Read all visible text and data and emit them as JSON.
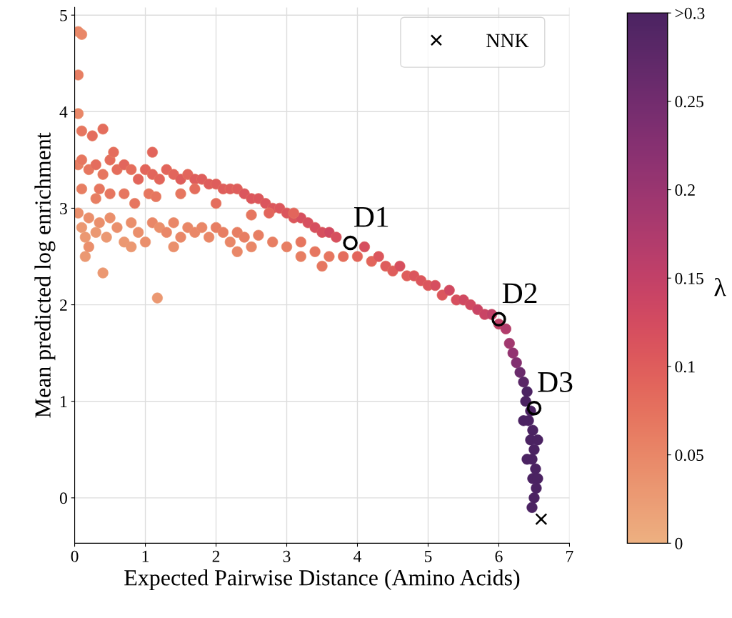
{
  "chart_data": {
    "type": "scatter",
    "xlabel": "Expected Pairwise Distance (Amino Acids)",
    "ylabel": "Mean predicted log enrichment",
    "clabel": "λ",
    "xlim": [
      0,
      7
    ],
    "xticks": [
      0,
      1,
      2,
      3,
      4,
      5,
      6,
      7
    ],
    "ylim": [
      -0.47,
      5.08
    ],
    "yticks": [
      0,
      1,
      2,
      3,
      4,
      5
    ],
    "clim": [
      0,
      0.3
    ],
    "cticks": [
      0,
      0.05,
      0.1,
      0.15,
      0.2,
      0.25,
      {
        "value": 0.3,
        "label": ">0.3"
      }
    ],
    "grid": true,
    "legend": "top right",
    "series": [
      {
        "marker": "circle",
        "colors": [
          "#e88f6e",
          "#e7896a",
          "#e7896a",
          "#e68466",
          "#e7896a",
          "#e68466",
          "#e68466",
          "#e47d63",
          "#e68466",
          "#e47d63",
          "#e47d63",
          "#e47d63",
          "#e47d63",
          "#e47d63",
          "#e47d63",
          "#e27560",
          "#e47d63",
          "#e27560",
          "#e27560",
          "#e27560",
          "#e27560",
          "#e27560",
          "#e27560",
          "#e27560",
          "#df6e5f",
          "#df6e5f",
          "#df6e5f",
          "#df6e5f",
          "#df6e5f",
          "#df6e5f",
          "#df6e5f",
          "#df6e5f",
          "#db665f",
          "#db665f",
          "#db665f",
          "#db665f",
          "#d65e60",
          "#db665f",
          "#e88f6e",
          "#e88f6e",
          "#e7896a",
          "#e7896a",
          "#e7896a",
          "#e7896a",
          "#e7896a",
          "#e7896a",
          "#e7896a",
          "#e68466",
          "#e68466",
          "#e7896a",
          "#e47d63",
          "#e47d63",
          "#ea9a76",
          "#eba07a",
          "#eba07a",
          "#ea9a76",
          "#eba07a",
          "#ea9a76",
          "#eba07a",
          "#ea9a76",
          "#ea9a76",
          "#eba07a",
          "#ea9a76",
          "#ea9a76",
          "#ea9a76",
          "#e99572",
          "#ea9a76",
          "#e99572",
          "#e99572",
          "#e99572",
          "#e99572",
          "#e99572",
          "#e99572",
          "#e99572",
          "#e88f6e",
          "#e88f6e",
          "#e99572",
          "#e88f6e",
          "#e88f6e",
          "#e99572",
          "#e88f6e",
          "#e88f6e",
          "#e88f6e",
          "#e7896a",
          "#e7896a",
          "#e7896a",
          "#e68466",
          "#e88f6e",
          "#e99572",
          "#ea9a76",
          "#eba07a",
          "#e7896a",
          "#e47d63",
          "#db665f",
          "#e47d63",
          "#df6e5f",
          "#e27560",
          "#e27560",
          "#db665f",
          "#e27560",
          "#df6e5f",
          "#df6e5f",
          "#df6e5f",
          "#db665f",
          "#df6e5f",
          "#d65e60",
          "#db665f",
          "#d65e60",
          "#d65e60",
          "#d05862",
          "#d05862",
          "#c95364",
          "#c95364",
          "#bb4a68",
          "#aa426b",
          "#98386c",
          "#85316c",
          "#6c2a68",
          "#5b2764",
          "#4b2362",
          "#4b2362",
          "#4b2362",
          "#4b2362",
          "#4b2362",
          "#4b2362",
          "#4b2362",
          "#4b2362",
          "#4b2362",
          "#4b2362",
          "#4b2362",
          "#4b2362",
          "#4b2362",
          "#4b2362",
          "#4b2362",
          "#4b2362",
          "#4b2362",
          "#e99572",
          "#e99572",
          "#e88f6e",
          "#e99572",
          "#e7896a",
          "#e68466",
          "#e68466",
          "#e68466",
          "#e47d63",
          "#eba07a",
          "#eba07a",
          "#eba07a",
          "#ea9a76"
        ],
        "x": [
          0.05,
          0.1,
          0.2,
          0.3,
          0.4,
          0.5,
          0.6,
          0.7,
          0.8,
          0.9,
          1.0,
          1.1,
          1.2,
          1.3,
          1.4,
          1.5,
          1.6,
          1.7,
          1.8,
          1.9,
          2.0,
          2.1,
          2.2,
          2.3,
          2.4,
          2.5,
          2.6,
          2.7,
          2.8,
          2.9,
          3.0,
          3.1,
          3.2,
          3.3,
          3.4,
          3.5,
          3.6,
          3.7,
          0.1,
          0.3,
          0.35,
          0.5,
          0.7,
          0.85,
          1.05,
          1.15,
          1.5,
          1.7,
          2.0,
          2.5,
          2.75,
          3.1,
          0.05,
          0.1,
          0.15,
          0.2,
          0.3,
          0.35,
          0.45,
          0.5,
          0.6,
          0.7,
          0.8,
          0.9,
          1.0,
          1.1,
          1.2,
          1.3,
          1.4,
          1.5,
          1.6,
          1.7,
          1.8,
          1.9,
          2.0,
          2.1,
          2.2,
          2.3,
          2.4,
          2.5,
          2.6,
          2.8,
          3.0,
          3.2,
          3.4,
          3.6,
          3.8,
          3.2,
          2.3,
          1.4,
          0.8,
          3.5,
          4.0,
          4.1,
          4.2,
          4.3,
          4.4,
          4.5,
          4.6,
          4.7,
          4.8,
          4.9,
          5.0,
          5.1,
          5.2,
          5.3,
          5.4,
          5.5,
          5.6,
          5.7,
          5.8,
          5.9,
          6.0,
          6.1,
          6.15,
          6.2,
          6.25,
          6.3,
          6.35,
          6.4,
          6.38,
          6.45,
          6.42,
          6.48,
          6.45,
          6.5,
          6.47,
          6.52,
          6.48,
          6.53,
          6.5,
          6.47,
          6.55,
          6.55,
          6.35,
          6.4,
          0.05,
          0.1,
          0.05,
          0.05,
          0.1,
          0.4,
          0.25,
          0.55,
          1.1,
          0.4,
          1.17,
          0.15,
          0.2
        ],
        "values": [
          3.45,
          3.5,
          3.4,
          3.45,
          3.35,
          3.5,
          3.4,
          3.45,
          3.4,
          3.3,
          3.4,
          3.35,
          3.3,
          3.4,
          3.35,
          3.3,
          3.35,
          3.3,
          3.3,
          3.25,
          3.25,
          3.2,
          3.2,
          3.2,
          3.15,
          3.1,
          3.1,
          3.05,
          3.0,
          3.0,
          2.95,
          2.9,
          2.9,
          2.85,
          2.8,
          2.75,
          2.75,
          2.7,
          3.2,
          3.1,
          3.2,
          3.15,
          3.15,
          3.05,
          3.15,
          3.12,
          3.15,
          3.2,
          3.05,
          2.93,
          2.95,
          2.95,
          2.95,
          2.8,
          2.7,
          2.9,
          2.75,
          2.85,
          2.7,
          2.9,
          2.8,
          2.65,
          2.85,
          2.75,
          2.65,
          2.85,
          2.8,
          2.75,
          2.85,
          2.7,
          2.8,
          2.75,
          2.8,
          2.7,
          2.8,
          2.75,
          2.65,
          2.75,
          2.7,
          2.6,
          2.72,
          2.65,
          2.6,
          2.65,
          2.55,
          2.5,
          2.5,
          2.5,
          2.55,
          2.6,
          2.6,
          2.4,
          2.5,
          2.6,
          2.45,
          2.5,
          2.4,
          2.35,
          2.4,
          2.3,
          2.3,
          2.25,
          2.2,
          2.2,
          2.1,
          2.15,
          2.05,
          2.05,
          2.0,
          1.95,
          1.9,
          1.9,
          1.8,
          1.75,
          1.6,
          1.5,
          1.4,
          1.3,
          1.2,
          1.1,
          1.0,
          0.9,
          0.8,
          0.7,
          0.6,
          0.5,
          0.4,
          0.3,
          0.2,
          0.1,
          0.0,
          -0.1,
          0.6,
          0.2,
          0.8,
          0.4,
          4.83,
          4.8,
          4.38,
          3.98,
          3.8,
          3.82,
          3.75,
          3.58,
          3.58,
          2.33,
          2.07,
          2.5,
          2.6
        ],
        "cvalues": [
          0.06,
          0.07,
          0.07,
          0.08,
          0.07,
          0.08,
          0.08,
          0.09,
          0.08,
          0.09,
          0.09,
          0.09,
          0.09,
          0.09,
          0.09,
          0.1,
          0.09,
          0.1,
          0.1,
          0.1,
          0.1,
          0.1,
          0.1,
          0.1,
          0.11,
          0.11,
          0.11,
          0.11,
          0.11,
          0.11,
          0.11,
          0.11,
          0.12,
          0.12,
          0.12,
          0.12,
          0.13,
          0.12,
          0.06,
          0.06,
          0.07,
          0.07,
          0.07,
          0.07,
          0.07,
          0.07,
          0.07,
          0.08,
          0.08,
          0.07,
          0.09,
          0.09,
          0.04,
          0.03,
          0.03,
          0.04,
          0.03,
          0.04,
          0.03,
          0.04,
          0.04,
          0.03,
          0.04,
          0.04,
          0.04,
          0.05,
          0.04,
          0.05,
          0.05,
          0.05,
          0.05,
          0.05,
          0.05,
          0.05,
          0.06,
          0.06,
          0.05,
          0.06,
          0.06,
          0.05,
          0.06,
          0.06,
          0.06,
          0.07,
          0.07,
          0.07,
          0.08,
          0.06,
          0.05,
          0.04,
          0.03,
          0.07,
          0.09,
          0.12,
          0.09,
          0.11,
          0.1,
          0.1,
          0.12,
          0.1,
          0.11,
          0.11,
          0.11,
          0.12,
          0.11,
          0.13,
          0.12,
          0.13,
          0.13,
          0.14,
          0.14,
          0.15,
          0.15,
          0.17,
          0.19,
          0.21,
          0.23,
          0.26,
          0.28,
          0.3,
          0.3,
          0.3,
          0.3,
          0.3,
          0.3,
          0.3,
          0.3,
          0.3,
          0.3,
          0.3,
          0.3,
          0.3,
          0.3,
          0.3,
          0.3,
          0.3,
          0.05,
          0.05,
          0.06,
          0.05,
          0.07,
          0.08,
          0.08,
          0.08,
          0.09,
          0.03,
          0.03,
          0.03,
          0.04
        ]
      },
      {
        "marker": "hollow circle",
        "color": "#000000",
        "x": [
          3.9,
          6.0,
          6.5
        ],
        "values": [
          2.64,
          1.85,
          0.93
        ]
      },
      {
        "marker": "cross",
        "name": "NNK",
        "color": "#000000",
        "x": [
          6.6
        ],
        "values": [
          -0.22
        ]
      }
    ],
    "annotations": [
      {
        "text": "D1",
        "x": 3.9,
        "y": 2.64
      },
      {
        "text": "D2",
        "x": 6.0,
        "y": 1.85
      },
      {
        "text": "D3",
        "x": 6.5,
        "y": 0.93
      }
    ]
  }
}
